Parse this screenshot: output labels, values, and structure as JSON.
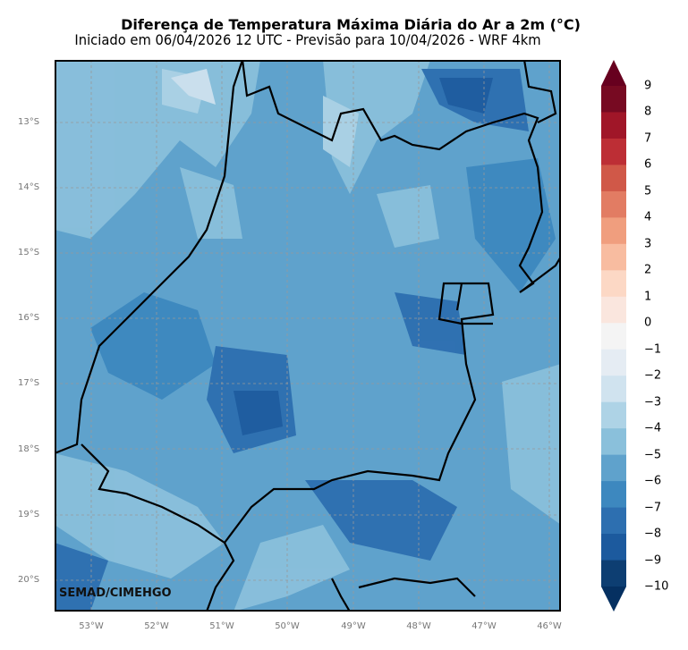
{
  "title": "Diferença de Temperatura Máxima Diária do Ar a 2m (°C)",
  "subtitle": "Iniciado em 06/04/2026 12 UTC - Previsão para 10/04/2026 - WRF 4km",
  "credit": "SEMAD/CIMEHGO",
  "lat_labels": [
    "13°S",
    "14°S",
    "15°S",
    "16°S",
    "17°S",
    "18°S",
    "19°S",
    "20°S"
  ],
  "lon_labels": [
    "53°W",
    "52°W",
    "51°W",
    "50°W",
    "49°W",
    "48°W",
    "47°W",
    "46°W"
  ],
  "colorbar": {
    "labels": [
      "9",
      "8",
      "7",
      "6",
      "5",
      "4",
      "3",
      "2",
      "1",
      "0",
      "−1",
      "−2",
      "−3",
      "−4",
      "−5",
      "−6",
      "−7",
      "−8",
      "−9",
      "−10"
    ],
    "colors": [
      "#770a22",
      "#a01628",
      "#bd2e35",
      "#d05848",
      "#e27c63",
      "#f09e7e",
      "#f8bca0",
      "#fcd8c5",
      "#fae6de",
      "#f4f4f4",
      "#e5ecf3",
      "#d0e3ef",
      "#aed3e6",
      "#8ac0db",
      "#5fa2cc",
      "#3d88bf",
      "#2d6fb0",
      "#1c5a9e",
      "#0d3e72"
    ],
    "over_color": "#67001f",
    "under_color": "#053061"
  }
}
